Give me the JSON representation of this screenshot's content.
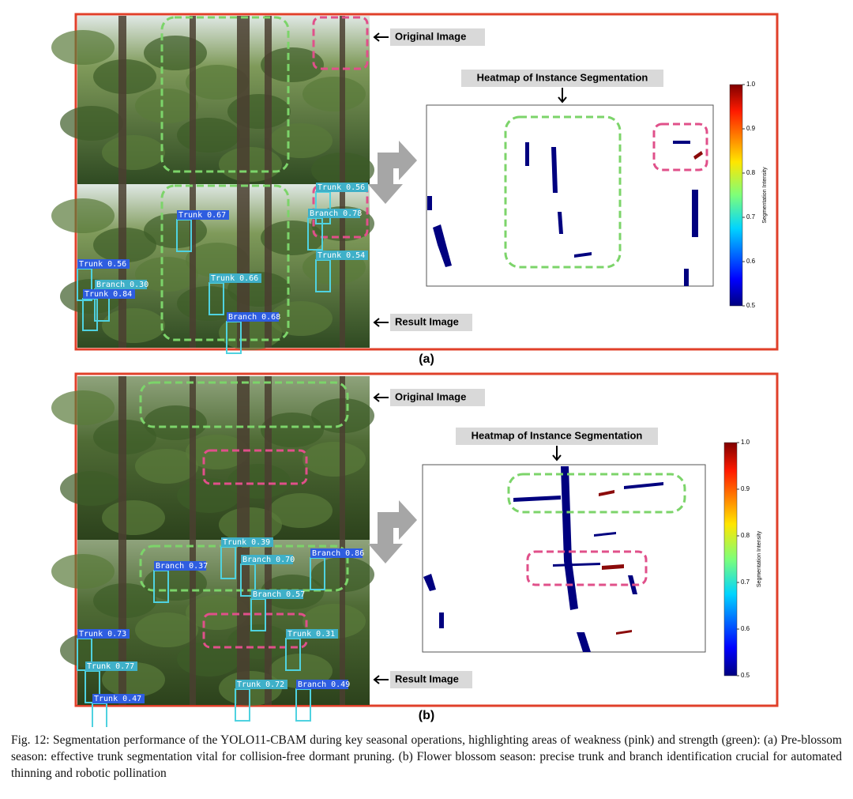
{
  "figure": {
    "panels": [
      {
        "label": "(a)",
        "original_label": "Original  Image",
        "heatmap_title": "Heatmap of Instance Segmentation",
        "result_label": "Result Image",
        "colorbar": {
          "label": "Segmentation Intensity",
          "ticks": [
            0.5,
            0.6,
            0.7,
            0.8,
            0.9,
            {
              "value": 1,
              "label": "1.0"
            }
          ]
        },
        "detections": [
          "Trunk 0.56",
          "Trunk 0.67",
          "Branch 0.78",
          "Trunk 0.56",
          "Branch 0.30",
          "Trunk 0.84",
          "Trunk 0.66",
          "Branch 0.68",
          "Trunk 0.54"
        ]
      },
      {
        "label": "(b)",
        "original_label": "Original  Image",
        "heatmap_title": "Heatmap of Instance Segmentation",
        "result_label": "Result Image",
        "colorbar": {
          "label": "Segmentation Intensity",
          "ticks": [
            0.5,
            0.6,
            0.7,
            0.8,
            0.9,
            {
              "value": 1,
              "label": "1.0"
            }
          ]
        },
        "detections": [
          "Trunk 0.39",
          "Branch 0.37",
          "Branch 0.70",
          "Branch 0.86",
          "Branch 0.57",
          "Trunk 0.73",
          "Trunk 0.77",
          "Trunk 0.47",
          "Trunk 0.72",
          "Branch 0.49",
          "Trunk 0.31"
        ]
      }
    ],
    "caption": "Fig. 12: Segmentation performance of the YOLO11-CBAM during key seasonal operations, highlighting areas of weakness (pink) and strength (green): (a) Pre-blossom season: effective trunk segmentation vital for collision-free dormant pruning. (b) Flower blossom season: precise trunk and branch identification crucial for automated thinning and robotic pollination"
  }
}
